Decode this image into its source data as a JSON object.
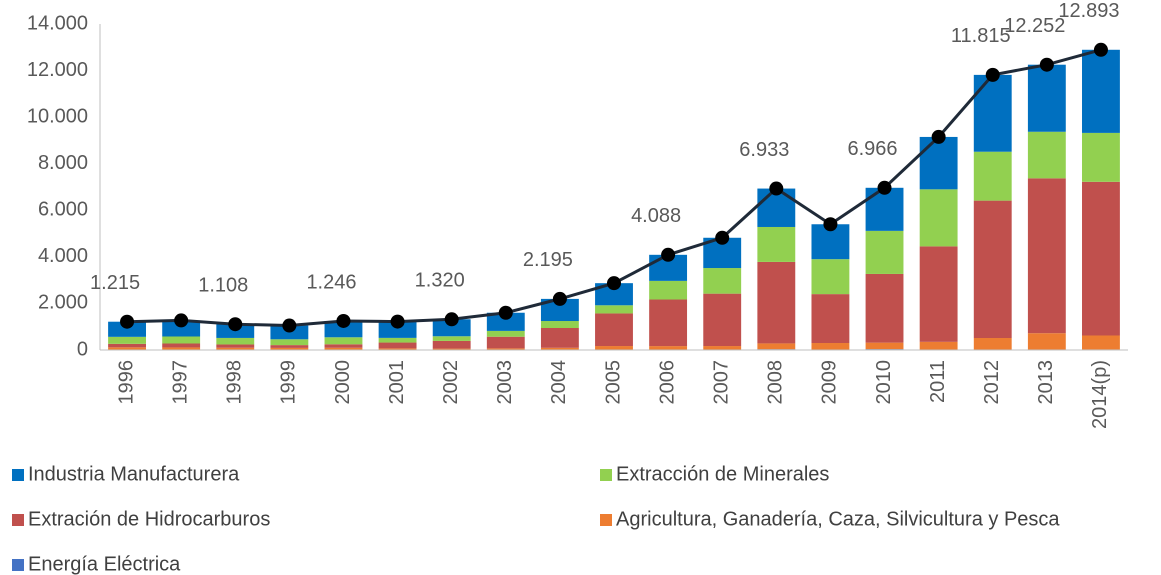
{
  "chart_data": {
    "type": "bar",
    "stacked": true,
    "categories": [
      "1996",
      "1997",
      "1998",
      "1999",
      "2000",
      "2001",
      "2002",
      "2003",
      "2004",
      "2005",
      "2006",
      "2007",
      "2008",
      "2009",
      "2010",
      "2011",
      "2012",
      "2013",
      "2014(p)"
    ],
    "series": [
      {
        "name": "Energía Eléctrica",
        "color": "#4472c4",
        "values": [
          15,
          10,
          8,
          10,
          16,
          10,
          10,
          10,
          15,
          20,
          18,
          20,
          33,
          20,
          36,
          20,
          15,
          22,
          23
        ]
      },
      {
        "name": "Agricultura, Ganadería, Caza, Silvicultura y Pesca",
        "color": "#ed7d31",
        "values": [
          100,
          100,
          90,
          80,
          80,
          60,
          50,
          60,
          80,
          150,
          150,
          150,
          250,
          280,
          280,
          330,
          500,
          700,
          600
        ]
      },
      {
        "name": "Extración de Hidrocarburos",
        "color": "#c0504d",
        "values": [
          150,
          170,
          140,
          120,
          150,
          250,
          330,
          500,
          850,
          1400,
          2000,
          2250,
          3500,
          2100,
          2950,
          4100,
          5900,
          6650,
          6600
        ]
      },
      {
        "name": "Extracción de Minerales",
        "color": "#92d050",
        "values": [
          300,
          300,
          280,
          250,
          300,
          200,
          200,
          250,
          300,
          350,
          800,
          1100,
          1500,
          1500,
          1850,
          2450,
          2100,
          2000,
          2100
        ]
      },
      {
        "name": "Industria Manufacturera",
        "color": "#0070c0",
        "values": [
          650,
          690,
          590,
          590,
          700,
          700,
          730,
          780,
          950,
          950,
          1120,
          1300,
          1650,
          1500,
          1850,
          2250,
          3300,
          2880,
          3570
        ]
      }
    ],
    "total": {
      "color": "#1f2a38",
      "values": [
        1215,
        1270,
        1108,
        1050,
        1246,
        1220,
        1320,
        1600,
        2195,
        2870,
        4088,
        4820,
        6933,
        5400,
        6966,
        9150,
        11815,
        12252,
        12893
      ],
      "value_labels": [
        "1.215",
        null,
        "1.108",
        null,
        "1.246",
        null,
        "1.320",
        null,
        "2.195",
        null,
        "4.088",
        null,
        "6.933",
        null,
        "6.966",
        null,
        "11.815",
        "12.252",
        "12.893"
      ]
    },
    "ylim": [
      0,
      14000
    ],
    "yticks": [
      0,
      {
        "value": 2000,
        "label": "2.000"
      },
      {
        "value": 4000,
        "label": "4.000"
      },
      {
        "value": 6000,
        "label": "6.000"
      },
      {
        "value": 8000,
        "label": "8.000"
      },
      {
        "value": 10000,
        "label": "10.000"
      },
      {
        "value": 12000,
        "label": "12.000"
      },
      {
        "value": 14000,
        "label": "14.000"
      }
    ],
    "legend_order": [
      4,
      3,
      2,
      1,
      0
    ]
  }
}
